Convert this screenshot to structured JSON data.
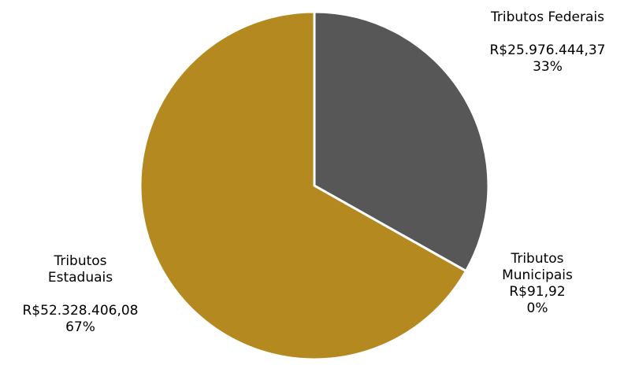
{
  "chart_data": {
    "type": "pie",
    "title": "",
    "start_angle_deg": 0,
    "direction": "clockwise",
    "colors": [
      "#575757",
      "#ffffff",
      "#b38920"
    ],
    "slice_border_color": "#ffffff",
    "slices": [
      {
        "name": "Tributos Federais",
        "value": 25976444.37,
        "value_label": "R$25.976.444,37",
        "percent_label": "33%"
      },
      {
        "name": "Tributos Municipais",
        "value": 91.92,
        "value_label": "R$91,92",
        "percent_label": "0%"
      },
      {
        "name": "Tributos Estaduais",
        "value": 52328406.08,
        "value_label": "R$52.328.406,08",
        "percent_label": "67%"
      }
    ]
  }
}
